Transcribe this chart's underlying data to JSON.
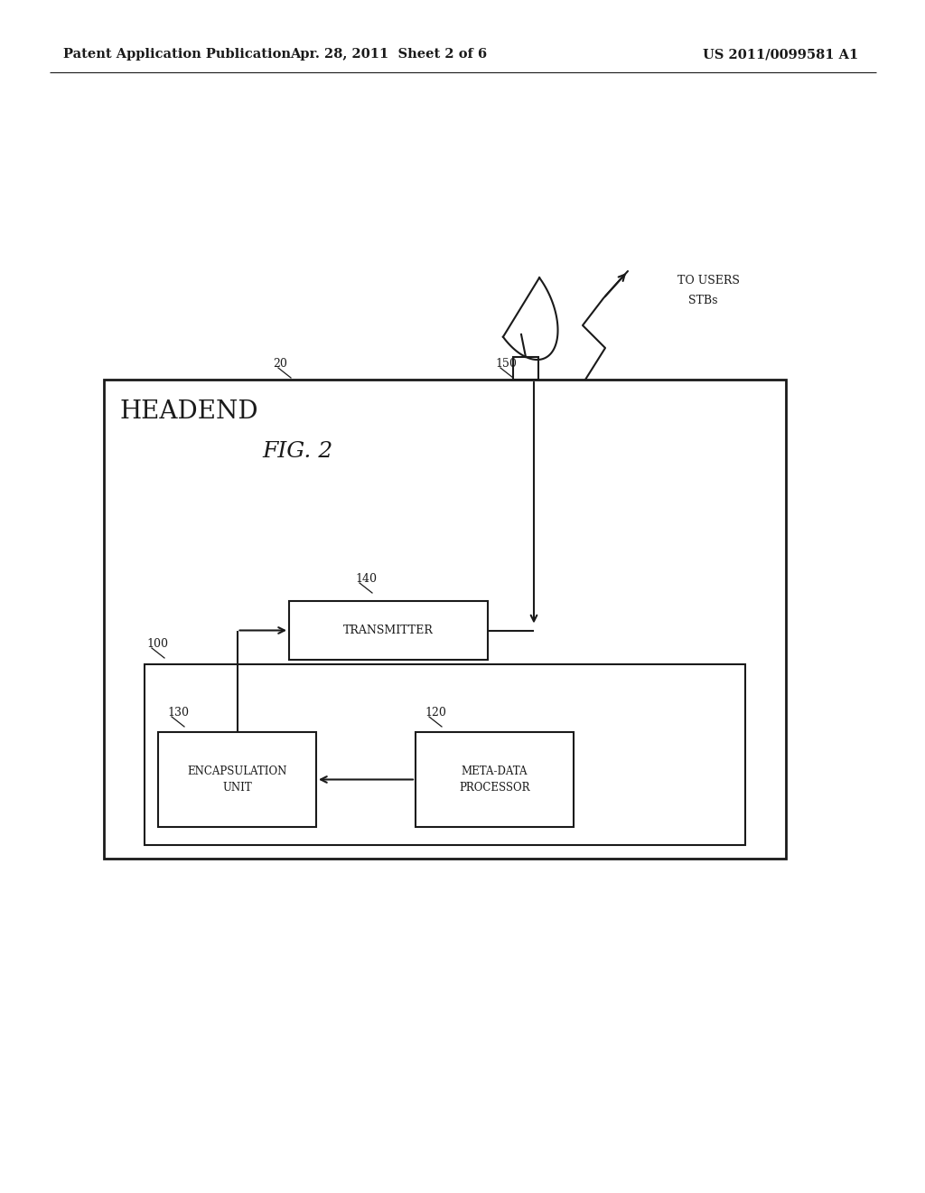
{
  "bg_color": "#ffffff",
  "text_color": "#1a1a1a",
  "header_left": "Patent Application Publication",
  "header_center": "Apr. 28, 2011  Sheet 2 of 6",
  "header_right": "US 2011/0099581 A1",
  "fig_label": "FIG. 2",
  "headend_label": "HEADEND",
  "to_users_line1": "TO USERS",
  "to_users_line2": "STBs",
  "label_20": "20",
  "label_100": "100",
  "label_120": "120",
  "label_130": "130",
  "label_140": "140",
  "label_150": "150",
  "transmitter_label": "TRANSMITTER",
  "encapsulation_label": "ENCAPSULATION\nUNIT",
  "metadata_label": "META-DATA\nPROCESSOR"
}
